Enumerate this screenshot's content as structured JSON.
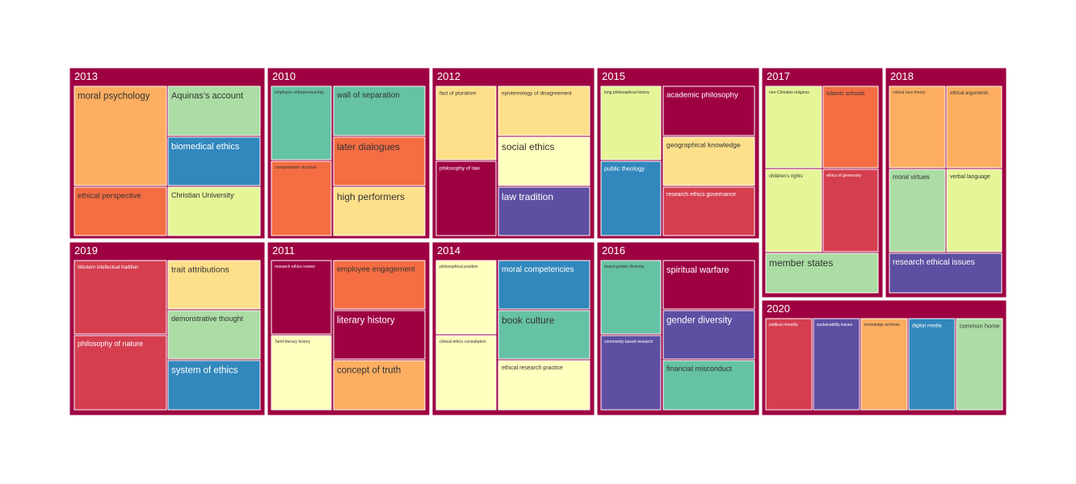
{
  "chart_data": {
    "type": "treemap",
    "title": "",
    "groups": [
      {
        "name": "2013",
        "color": "#9e0142",
        "items": [
          {
            "label": "moral psychology",
            "value": 4,
            "color": "#fdae61",
            "text_color": "#333333"
          },
          {
            "label": "Aquinas’s account",
            "value": 2,
            "color": "#abdda4",
            "text_color": "#333333"
          },
          {
            "label": "biomedical ethics",
            "value": 2,
            "color": "#3288bd",
            "text_color": "#ffffff"
          },
          {
            "label": "ethical perspective",
            "value": 2,
            "color": "#f46d43",
            "text_color": "#333333"
          },
          {
            "label": "Christian University",
            "value": 2,
            "color": "#e6f598",
            "text_color": "#333333"
          }
        ]
      },
      {
        "name": "2010",
        "color": "#9e0142",
        "items": [
          {
            "label": "employee entrepreneurship",
            "value": 2,
            "color": "#66c2a5",
            "text_color": "#333333"
          },
          {
            "label": "wall of separation",
            "value": 2,
            "color": "#66c2a5",
            "text_color": "#333333"
          },
          {
            "label": "compensation structure",
            "value": 2,
            "color": "#f46d43",
            "text_color": "#333333"
          },
          {
            "label": "later dialogues",
            "value": 2,
            "color": "#f46d43",
            "text_color": "#333333"
          },
          {
            "label": "high performers",
            "value": 2,
            "color": "#fee08b",
            "text_color": "#333333"
          }
        ]
      },
      {
        "name": "2012",
        "color": "#9e0142",
        "items": [
          {
            "label": "fact of pluralism",
            "value": 2,
            "color": "#fee08b",
            "text_color": "#333333"
          },
          {
            "label": "epistemology of disagreement",
            "value": 2,
            "color": "#fee08b",
            "text_color": "#333333"
          },
          {
            "label": "philosophy of law",
            "value": 2,
            "color": "#9e0142",
            "text_color": "#ffffff"
          },
          {
            "label": "social ethics",
            "value": 2,
            "color": "#ffffbf",
            "text_color": "#333333"
          },
          {
            "label": "law tradition",
            "value": 2,
            "color": "#5e4fa2",
            "text_color": "#ffffff"
          }
        ]
      },
      {
        "name": "2015",
        "color": "#9e0142",
        "items": [
          {
            "label": "long philosophical history",
            "value": 2,
            "color": "#e6f598",
            "text_color": "#333333"
          },
          {
            "label": "academic philosophy",
            "value": 2,
            "color": "#9e0142",
            "text_color": "#ffffff"
          },
          {
            "label": "public theology",
            "value": 2,
            "color": "#3288bd",
            "text_color": "#ffffff"
          },
          {
            "label": "geographical knowledge",
            "value": 2,
            "color": "#fee08b",
            "text_color": "#333333"
          },
          {
            "label": "research ethics governance",
            "value": 2,
            "color": "#d53e4f",
            "text_color": "#ffffff"
          }
        ]
      },
      {
        "name": "2017",
        "color": "#9e0142",
        "items": [
          {
            "label": "non-Christian religions",
            "value": 2,
            "color": "#e6f598",
            "text_color": "#333333"
          },
          {
            "label": "Islamic schools",
            "value": 2,
            "color": "#f46d43",
            "text_color": "#333333"
          },
          {
            "label": "children’s rights",
            "value": 2,
            "color": "#e6f598",
            "text_color": "#333333"
          },
          {
            "label": "ethics of generosity",
            "value": 2,
            "color": "#d53e4f",
            "text_color": "#ffffff"
          },
          {
            "label": "member states",
            "value": 2,
            "color": "#abdda4",
            "text_color": "#333333"
          }
        ]
      },
      {
        "name": "2018",
        "color": "#9e0142",
        "items": [
          {
            "label": "critical race theory",
            "value": 2,
            "color": "#fdae61",
            "text_color": "#333333"
          },
          {
            "label": "ethical arguments",
            "value": 2,
            "color": "#fdae61",
            "text_color": "#333333"
          },
          {
            "label": "moral virtues",
            "value": 2,
            "color": "#abdda4",
            "text_color": "#333333"
          },
          {
            "label": "verbal language",
            "value": 2,
            "color": "#e6f598",
            "text_color": "#333333"
          },
          {
            "label": "research ethical issues",
            "value": 2,
            "color": "#5e4fa2",
            "text_color": "#ffffff"
          }
        ]
      },
      {
        "name": "2019",
        "color": "#9e0142",
        "items": [
          {
            "label": "Western intellectual tradition",
            "value": 2,
            "color": "#d53e4f",
            "text_color": "#ffffff"
          },
          {
            "label": "trait attributions",
            "value": 2,
            "color": "#fee08b",
            "text_color": "#333333"
          },
          {
            "label": "philosophy of nature",
            "value": 2,
            "color": "#d53e4f",
            "text_color": "#ffffff"
          },
          {
            "label": "demonstrative thought",
            "value": 2,
            "color": "#abdda4",
            "text_color": "#333333"
          },
          {
            "label": "system of ethics",
            "value": 2,
            "color": "#3288bd",
            "text_color": "#ffffff"
          }
        ]
      },
      {
        "name": "2011",
        "color": "#9e0142",
        "items": [
          {
            "label": "research ethics review",
            "value": 2,
            "color": "#9e0142",
            "text_color": "#ffffff"
          },
          {
            "label": "employee engagement",
            "value": 2,
            "color": "#f46d43",
            "text_color": "#333333"
          },
          {
            "label": "Tamil literary history",
            "value": 2,
            "color": "#ffffbf",
            "text_color": "#333333"
          },
          {
            "label": "literary history",
            "value": 2,
            "color": "#9e0142",
            "text_color": "#ffffff"
          },
          {
            "label": "concept of truth",
            "value": 2,
            "color": "#fdae61",
            "text_color": "#333333"
          }
        ]
      },
      {
        "name": "2014",
        "color": "#9e0142",
        "items": [
          {
            "label": "philosophical position",
            "value": 2,
            "color": "#ffffbf",
            "text_color": "#333333"
          },
          {
            "label": "moral competencies",
            "value": 2,
            "color": "#3288bd",
            "text_color": "#ffffff"
          },
          {
            "label": "clinical ethics consultation",
            "value": 2,
            "color": "#ffffbf",
            "text_color": "#333333"
          },
          {
            "label": "book culture",
            "value": 2,
            "color": "#66c2a5",
            "text_color": "#333333"
          },
          {
            "label": "ethical research practice",
            "value": 2,
            "color": "#ffffbf",
            "text_color": "#333333"
          }
        ]
      },
      {
        "name": "2016",
        "color": "#9e0142",
        "items": [
          {
            "label": "board gender diversity",
            "value": 2,
            "color": "#66c2a5",
            "text_color": "#333333"
          },
          {
            "label": "spiritual warfare",
            "value": 2,
            "color": "#9e0142",
            "text_color": "#ffffff"
          },
          {
            "label": "community-based research",
            "value": 2,
            "color": "#5e4fa2",
            "text_color": "#ffffff"
          },
          {
            "label": "gender diversity",
            "value": 2,
            "color": "#5e4fa2",
            "text_color": "#ffffff"
          },
          {
            "label": "financial misconduct",
            "value": 2,
            "color": "#66c2a5",
            "text_color": "#333333"
          }
        ]
      },
      {
        "name": "2020",
        "color": "#9e0142",
        "items": [
          {
            "label": "political morality",
            "value": 2,
            "color": "#d53e4f",
            "text_color": "#ffffff"
          },
          {
            "label": "sustainability issues",
            "value": 2,
            "color": "#5e4fa2",
            "text_color": "#ffffff"
          },
          {
            "label": "knowledge archives",
            "value": 2,
            "color": "#fdae61",
            "text_color": "#333333"
          },
          {
            "label": "digital media",
            "value": 2,
            "color": "#3288bd",
            "text_color": "#ffffff"
          },
          {
            "label": "common home",
            "value": 2,
            "color": "#abdda4",
            "text_color": "#333333"
          }
        ]
      }
    ]
  }
}
